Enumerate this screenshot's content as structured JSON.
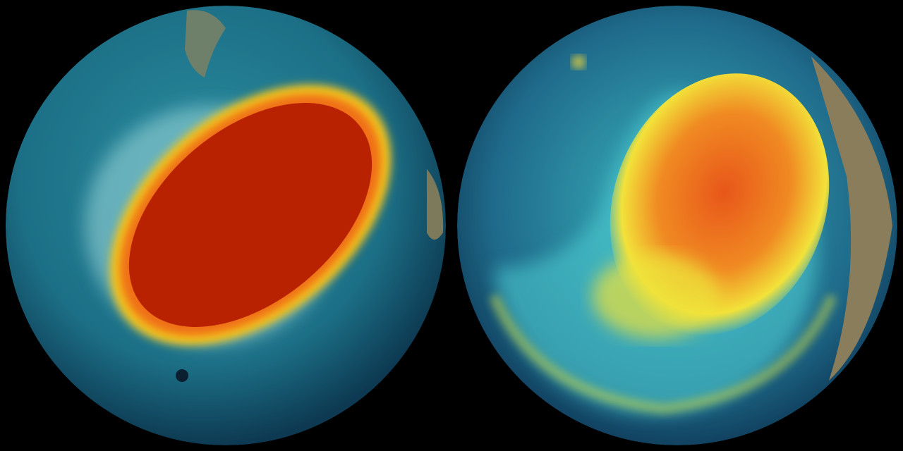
{
  "scene": {
    "background": "#000000",
    "globes": [
      {
        "name": "left-globe",
        "ocean": "#1c6f86",
        "hot": "#b82200",
        "warm": "#f7c81a",
        "cool": "#4fc9d4"
      },
      {
        "name": "right-globe",
        "ocean": "#1f6a8a",
        "hot": "#e8561a",
        "warm": "#f2e23a",
        "cool": "#56d3d8"
      }
    ]
  }
}
